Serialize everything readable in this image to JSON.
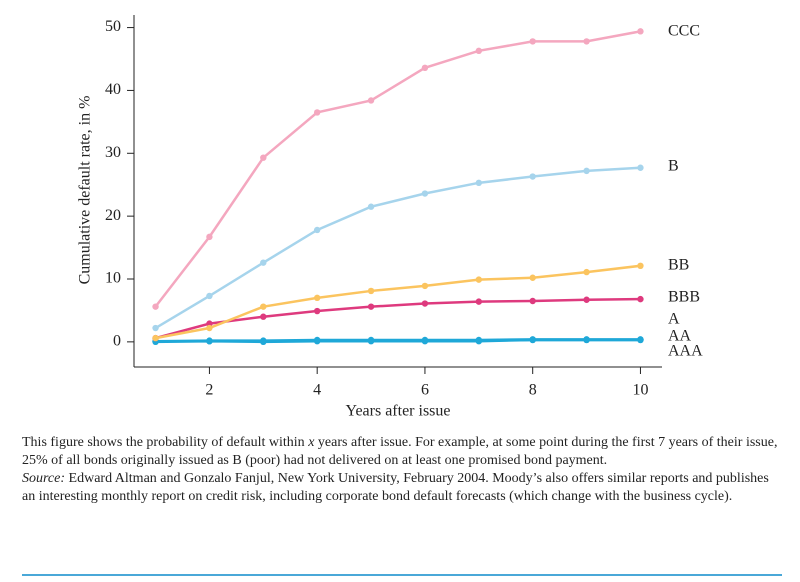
{
  "chart_data": {
    "type": "line",
    "x_label": "Years after issue",
    "y_label": "Cumulative default rate, in %",
    "x": [
      1,
      2,
      3,
      4,
      5,
      6,
      7,
      8,
      9,
      10
    ],
    "series": [
      {
        "name": "CCC",
        "color": "#f4a7bf",
        "values": [
          5.6,
          16.7,
          29.3,
          36.5,
          38.4,
          43.6,
          46.3,
          47.8,
          47.8,
          49.4
        ]
      },
      {
        "name": "B",
        "color": "#a6d4ec",
        "values": [
          2.2,
          7.3,
          12.6,
          17.8,
          21.5,
          23.6,
          25.3,
          26.3,
          27.2,
          27.7
        ]
      },
      {
        "name": "BB",
        "color": "#fbc45f",
        "values": [
          0.6,
          2.2,
          5.6,
          7.0,
          8.1,
          8.9,
          9.9,
          10.2,
          11.1,
          12.1
        ]
      },
      {
        "name": "BBB",
        "color": "#de3a7e",
        "values": [
          0.6,
          2.9,
          4.0,
          4.9,
          5.6,
          6.1,
          6.4,
          6.5,
          6.7,
          6.8
        ]
      },
      {
        "name": "A",
        "color": "#1fa8d8",
        "values": [
          0.1,
          0.2,
          0.2,
          0.3,
          0.3,
          0.3,
          0.3,
          0.4,
          0.4,
          0.4
        ]
      },
      {
        "name": "AA",
        "color": "#1fa8d8",
        "values": [
          0.1,
          0.1,
          0.1,
          0.2,
          0.2,
          0.2,
          0.2,
          0.3,
          0.3,
          0.3
        ]
      },
      {
        "name": "AAA",
        "color": "#1fa8d8",
        "values": [
          0,
          0.1,
          0,
          0.1,
          0.1,
          0.1,
          0.1,
          0.3,
          0.3,
          0.3
        ]
      }
    ],
    "xlim": [
      0.6,
      10.4
    ],
    "xticks": [
      2,
      4,
      6,
      8,
      10
    ],
    "ylim": [
      -4,
      52
    ],
    "yticks": [
      0,
      10,
      20,
      30,
      40,
      50
    ]
  },
  "caption": {
    "before": "This figure shows the probability of default within ",
    "italic": "x",
    "after": " years after issue. For example, at some point during the first 7 years of their issue, 25% of all bonds originally issued as B (poor) had not delivered on at least one promised bond payment.",
    "source_label": "Source:",
    "source_text": " Edward Altman and Gonzalo Fanjul, New York University, February 2004. Moody’s also offers similar reports and publishes an interesting monthly report on credit risk, including corporate bond default forecasts (which change with the business cycle)."
  }
}
